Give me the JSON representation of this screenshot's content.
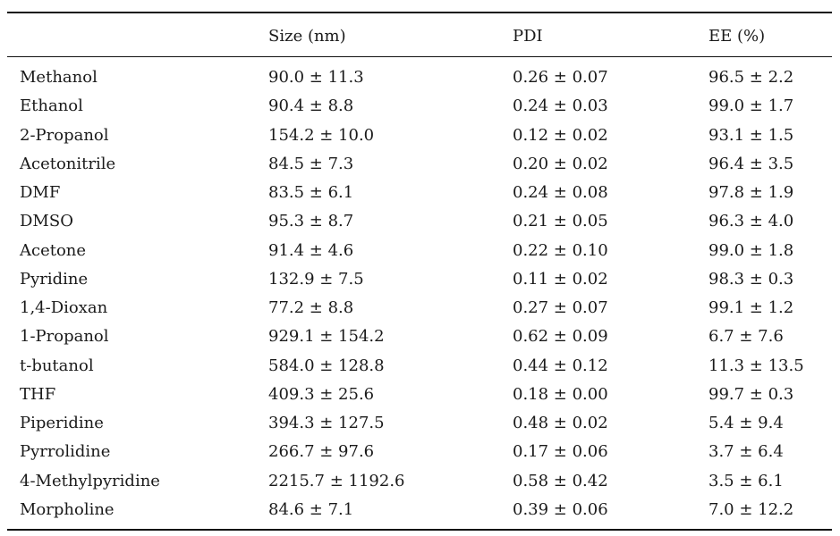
{
  "columns": [
    "",
    "Size (nm)",
    "PDI",
    "EE (%)"
  ],
  "rows": [
    [
      "Methanol",
      "90.0 ± 11.3",
      "0.26 ± 0.07",
      "96.5 ± 2.2"
    ],
    [
      "Ethanol",
      "90.4 ± 8.8",
      "0.24 ± 0.03",
      "99.0 ± 1.7"
    ],
    [
      "2-Propanol",
      "154.2 ± 10.0",
      "0.12 ± 0.02",
      "93.1 ± 1.5"
    ],
    [
      "Acetonitrile",
      "84.5 ± 7.3",
      "0.20 ± 0.02",
      "96.4 ± 3.5"
    ],
    [
      "DMF",
      "83.5 ± 6.1",
      "0.24 ± 0.08",
      "97.8 ± 1.9"
    ],
    [
      "DMSO",
      "95.3 ± 8.7",
      "0.21 ± 0.05",
      "96.3 ± 4.0"
    ],
    [
      "Acetone",
      "91.4 ± 4.6",
      "0.22 ± 0.10",
      "99.0 ± 1.8"
    ],
    [
      "Pyridine",
      "132.9 ± 7.5",
      "0.11 ± 0.02",
      "98.3 ± 0.3"
    ],
    [
      "1,4-Dioxan",
      "77.2 ± 8.8",
      "0.27 ± 0.07",
      "99.1 ± 1.2"
    ],
    [
      "1-Propanol",
      "929.1 ± 154.2",
      "0.62 ± 0.09",
      "6.7 ± 7.6"
    ],
    [
      "t-butanol",
      "584.0 ± 128.8",
      "0.44 ± 0.12",
      "11.3 ± 13.5"
    ],
    [
      "THF",
      "409.3 ± 25.6",
      "0.18 ± 0.00",
      "99.7 ± 0.3"
    ],
    [
      "Piperidine",
      "394.3 ± 127.5",
      "0.48 ± 0.02",
      "5.4 ± 9.4"
    ],
    [
      "Pyrrolidine",
      "266.7 ± 97.6",
      "0.17 ± 0.06",
      "3.7 ± 6.4"
    ],
    [
      "4-Methylpyridine",
      "2215.7 ± 1192.6",
      "0.58 ± 0.42",
      "3.5 ± 6.1"
    ],
    [
      "Morpholine",
      "84.6 ± 7.1",
      "0.39 ± 0.06",
      "7.0 ± 12.2"
    ]
  ]
}
